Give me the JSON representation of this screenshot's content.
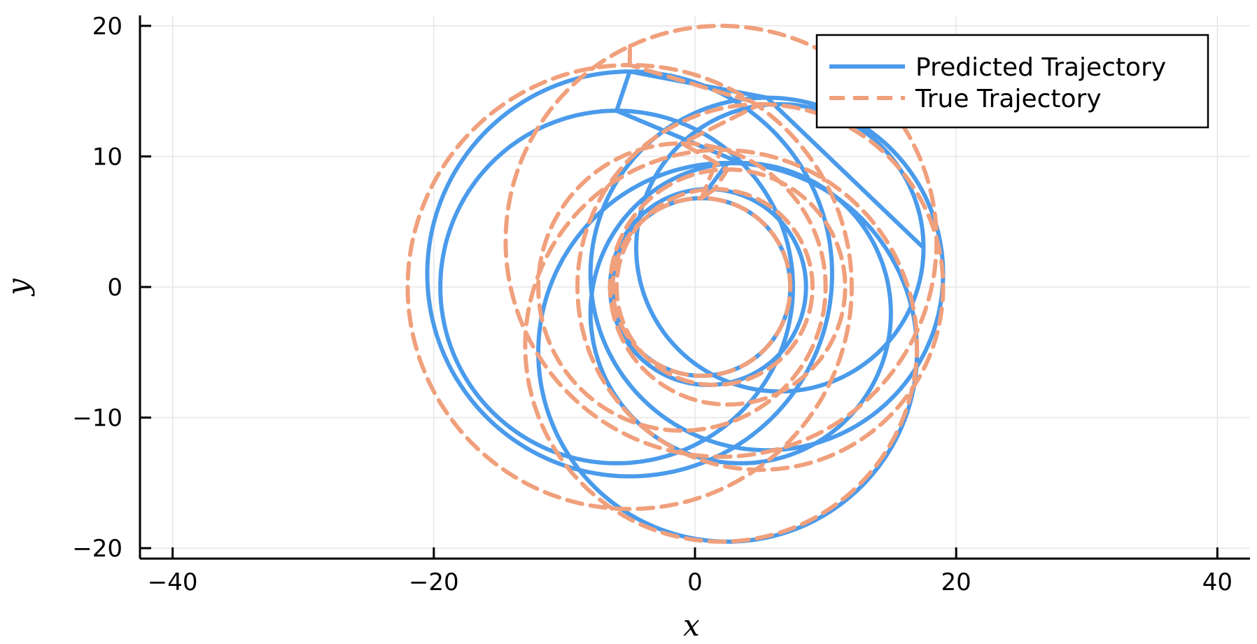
{
  "chart_data": {
    "type": "line",
    "title": "",
    "xlabel": "x",
    "ylabel": "y",
    "xlim": [
      -42.5,
      42.5
    ],
    "ylim": [
      -20.8,
      20.8
    ],
    "xticks": [
      -40,
      -20,
      0,
      20,
      40
    ],
    "yticks": [
      -20,
      -10,
      0,
      10,
      20
    ],
    "xtick_labels": [
      "−40",
      "−20",
      "0",
      "20",
      "40"
    ],
    "ytick_labels": [
      "−20",
      "−10",
      "0",
      "10",
      "20"
    ],
    "grid": true,
    "legend_position": "top-right",
    "series": [
      {
        "name": "Predicted Trajectory",
        "color": "#4a9beb",
        "style": "solid",
        "loops": [
          {
            "cx": 6.5,
            "cy": 3.0,
            "r": 11.0,
            "start_deg": 90,
            "end_deg": -360
          },
          {
            "cx": 5.5,
            "cy": 1.0,
            "r": 13.5,
            "start_deg": 90,
            "end_deg": -270
          },
          {
            "cx": -5.0,
            "cy": 1.0,
            "r": 15.5,
            "start_deg": 90,
            "end_deg": -270
          },
          {
            "cx": -6.0,
            "cy": 0.0,
            "r": 13.5,
            "start_deg": 90,
            "end_deg": -270
          },
          {
            "cx": 3.5,
            "cy": -2.0,
            "r": 11.5,
            "start_deg": 90,
            "end_deg": -270
          },
          {
            "cx": 2.5,
            "cy": -5.0,
            "r": 14.5,
            "start_deg": 90,
            "end_deg": -270
          },
          {
            "cx": 1.0,
            "cy": 0.0,
            "r": 7.5,
            "start_deg": 90,
            "end_deg": -270
          },
          {
            "cx": 0.5,
            "cy": 0.0,
            "r": 6.8,
            "start_deg": 90,
            "end_deg": -270
          }
        ]
      },
      {
        "name": "True Trajectory",
        "color": "#f0a07c",
        "style": "dashed",
        "loops": [
          {
            "cx": 2.0,
            "cy": 3.5,
            "r": 16.5,
            "start_deg": 115,
            "end_deg": -245
          },
          {
            "cx": -5.0,
            "cy": 0.0,
            "r": 17.0,
            "start_deg": 90,
            "end_deg": -270
          },
          {
            "cx": 5.0,
            "cy": 0.0,
            "r": 14.0,
            "start_deg": 90,
            "end_deg": -270
          },
          {
            "cx": -1.0,
            "cy": 0.0,
            "r": 11.0,
            "start_deg": 90,
            "end_deg": -270
          },
          {
            "cx": 2.5,
            "cy": 0.0,
            "r": 9.0,
            "start_deg": 90,
            "end_deg": -270
          },
          {
            "cx": 1.5,
            "cy": 0.0,
            "r": 7.5,
            "start_deg": 90,
            "end_deg": -270
          },
          {
            "cx": 0.5,
            "cy": 0.0,
            "r": 6.8,
            "start_deg": 90,
            "end_deg": -270
          },
          {
            "cx": 2.0,
            "cy": -4.5,
            "r": 15.0,
            "start_deg": 90,
            "end_deg": -270
          }
        ]
      }
    ]
  }
}
